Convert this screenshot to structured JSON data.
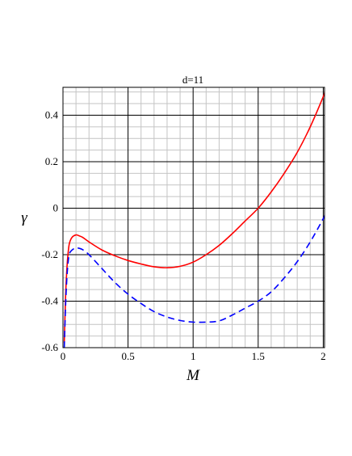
{
  "chart_data": {
    "type": "line",
    "title": "d=11",
    "xlabel": "M",
    "ylabel": "γ",
    "xlim": [
      0,
      2.01
    ],
    "ylim": [
      -0.6,
      0.52
    ],
    "grid": true,
    "x_major_ticks": [
      0,
      0.5,
      1,
      1.5,
      2
    ],
    "x_tick_labels": [
      "0",
      "0.5",
      "1",
      "1.5",
      "2"
    ],
    "y_major_ticks": [
      -0.6,
      -0.4,
      -0.2,
      0,
      0.2,
      0.4
    ],
    "y_tick_labels": [
      "-0.6",
      "-0.4",
      "-0.2",
      "0",
      "0.2",
      "0.4"
    ],
    "series": [
      {
        "style": "solid",
        "color": "#ff0000",
        "x": [
          0.01,
          0.02,
          0.03,
          0.04,
          0.05,
          0.07,
          0.1,
          0.12,
          0.15,
          0.2,
          0.3,
          0.4,
          0.5,
          0.6,
          0.7,
          0.8,
          0.9,
          1.0,
          1.1,
          1.2,
          1.3,
          1.4,
          1.5,
          1.6,
          1.7,
          1.8,
          1.9,
          2.0,
          2.01
        ],
        "y": [
          -0.58,
          -0.38,
          -0.26,
          -0.19,
          -0.15,
          -0.125,
          -0.115,
          -0.118,
          -0.125,
          -0.145,
          -0.18,
          -0.205,
          -0.225,
          -0.24,
          -0.252,
          -0.256,
          -0.25,
          -0.232,
          -0.2,
          -0.16,
          -0.11,
          -0.055,
          0.0,
          0.07,
          0.15,
          0.24,
          0.35,
          0.48,
          0.5
        ]
      },
      {
        "style": "dashed",
        "color": "#0000ff",
        "x": [
          0.01,
          0.02,
          0.03,
          0.04,
          0.05,
          0.07,
          0.1,
          0.12,
          0.15,
          0.2,
          0.3,
          0.4,
          0.5,
          0.6,
          0.7,
          0.8,
          0.9,
          1.0,
          1.1,
          1.2,
          1.3,
          1.4,
          1.5,
          1.6,
          1.7,
          1.8,
          1.9,
          2.0,
          2.01
        ],
        "y": [
          -0.6,
          -0.42,
          -0.3,
          -0.23,
          -0.195,
          -0.18,
          -0.17,
          -0.172,
          -0.178,
          -0.2,
          -0.26,
          -0.32,
          -0.37,
          -0.41,
          -0.445,
          -0.468,
          -0.483,
          -0.49,
          -0.49,
          -0.485,
          -0.46,
          -0.43,
          -0.4,
          -0.36,
          -0.3,
          -0.23,
          -0.145,
          -0.045,
          -0.03
        ]
      }
    ]
  }
}
